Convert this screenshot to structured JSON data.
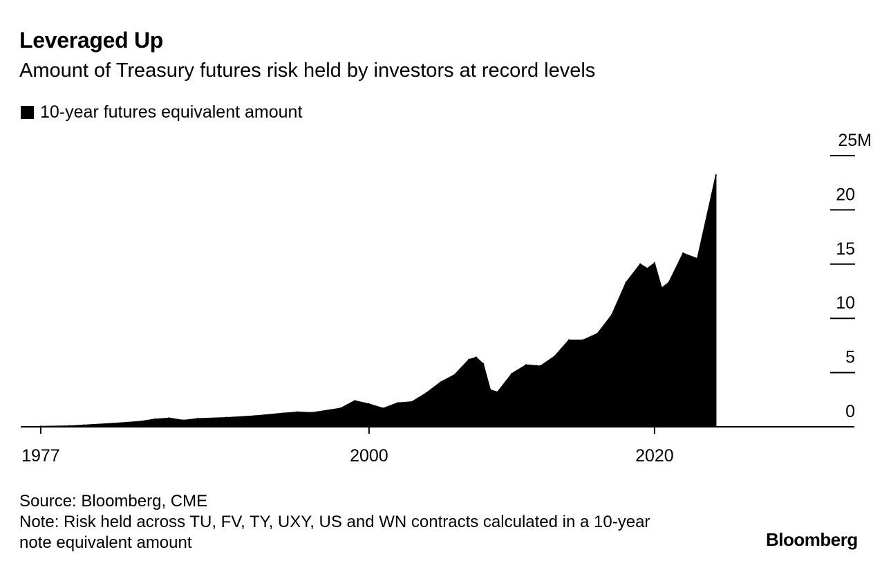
{
  "header": {
    "title": "Leveraged Up",
    "subtitle": "Amount of Treasury futures risk held by investors at record levels"
  },
  "legend": {
    "label": "10-year futures equivalent amount",
    "color": "#000000"
  },
  "footer": {
    "source": "Source: Bloomberg, CME",
    "note": "Note: Risk held across TU, FV, TY, UXY, US and WN contracts calculated in a 10-year note equivalent amount",
    "brand": "Bloomberg"
  },
  "chart_data": {
    "type": "area",
    "title": "Leveraged Up",
    "subtitle": "Amount of Treasury futures risk held by investors at record levels",
    "xlabel": "",
    "ylabel": "",
    "y_unit": "M",
    "xlim": [
      1975.6,
      2034
    ],
    "ylim": [
      0,
      25
    ],
    "grid": false,
    "legend_position": "top-left",
    "x_tick_labels": [
      "1977",
      "2000",
      "2020"
    ],
    "x_ticks": [
      1977,
      2000,
      2020
    ],
    "y_tick_labels": [
      "0",
      "5",
      "10",
      "15",
      "20",
      "25M"
    ],
    "y_ticks": [
      0,
      5,
      10,
      15,
      20,
      25
    ],
    "series": [
      {
        "name": "10-year futures equivalent amount",
        "color": "#000000",
        "x": [
          1977,
          1979,
          1980,
          1982,
          1984,
          1985,
          1986,
          1987,
          1988,
          1990,
          1992,
          1994,
          1995,
          1996,
          1998,
          1999,
          2000,
          2001,
          2002,
          2003,
          2004,
          2005,
          2006,
          2007,
          2007.5,
          2008,
          2008.5,
          2009,
          2010,
          2011,
          2012,
          2013,
          2014,
          2015,
          2016,
          2017,
          2018,
          2019,
          2019.5,
          2020,
          2020.5,
          2021,
          2022,
          2023,
          2024,
          2024.3
        ],
        "y": [
          0.03,
          0.08,
          0.15,
          0.3,
          0.5,
          0.7,
          0.8,
          0.6,
          0.75,
          0.85,
          1.0,
          1.25,
          1.35,
          1.3,
          1.7,
          2.4,
          2.1,
          1.7,
          2.2,
          2.3,
          3.1,
          4.1,
          4.8,
          6.2,
          6.4,
          5.8,
          3.4,
          3.2,
          4.9,
          5.7,
          5.6,
          6.5,
          8.0,
          8.0,
          8.6,
          10.3,
          13.3,
          15.0,
          14.6,
          15.1,
          12.8,
          13.3,
          16.0,
          15.5,
          21.4,
          23.2
        ]
      }
    ]
  }
}
